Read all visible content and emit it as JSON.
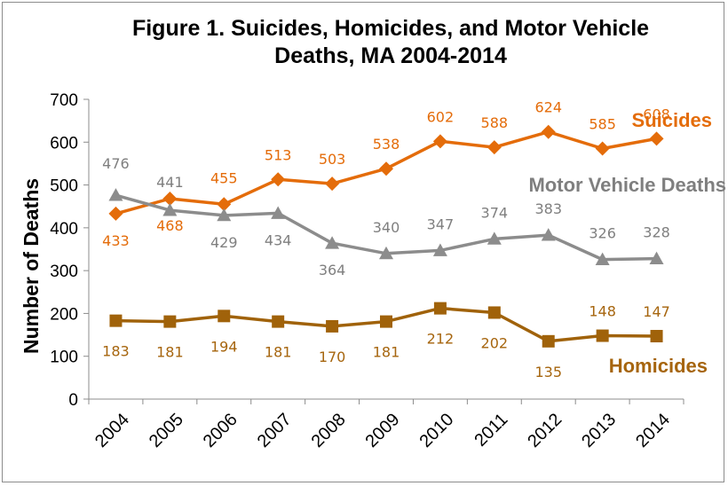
{
  "chart_data": {
    "type": "line",
    "title_line1": "Figure 1. Suicides, Homicides, and Motor Vehicle",
    "title_line2": "Deaths, MA 2004-2014",
    "xlabel": "",
    "ylabel": "Number of Deaths",
    "ylim": [
      0,
      700
    ],
    "yticks": [
      "0",
      "100",
      "200",
      "300",
      "400",
      "500",
      "600",
      "700"
    ],
    "categories": [
      "2004",
      "2005",
      "2006",
      "2007",
      "2008",
      "2009",
      "2010",
      "2011",
      "2012",
      "2013",
      "2014"
    ],
    "grid": false,
    "series": [
      {
        "name": "Suicides",
        "color": "#e46c0a",
        "label_color": "#e46c0a",
        "marker": "diamond",
        "values": [
          433,
          468,
          455,
          513,
          503,
          538,
          602,
          588,
          624,
          585,
          608
        ],
        "value_labels": [
          "433",
          "468",
          "455",
          "513",
          "503",
          "538",
          "602",
          "588",
          "624",
          "585",
          "608"
        ]
      },
      {
        "name": "Motor Vehicle Deaths",
        "color": "#8c8c8c",
        "label_color": "#7f7f7f",
        "marker": "triangle",
        "values": [
          476,
          441,
          429,
          434,
          364,
          340,
          347,
          374,
          383,
          326,
          328
        ],
        "value_labels": [
          "476",
          "441",
          "429",
          "434",
          "364",
          "340",
          "347",
          "374",
          "383",
          "326",
          "328"
        ]
      },
      {
        "name": "Homicides",
        "color": "#a0620a",
        "label_color": "#a6650e",
        "marker": "square",
        "values": [
          183,
          181,
          194,
          181,
          170,
          181,
          212,
          202,
          135,
          148,
          147
        ],
        "value_labels": [
          "183",
          "181",
          "194",
          "181",
          "170",
          "181",
          "212",
          "202",
          "135",
          "148",
          "147"
        ]
      }
    ]
  }
}
